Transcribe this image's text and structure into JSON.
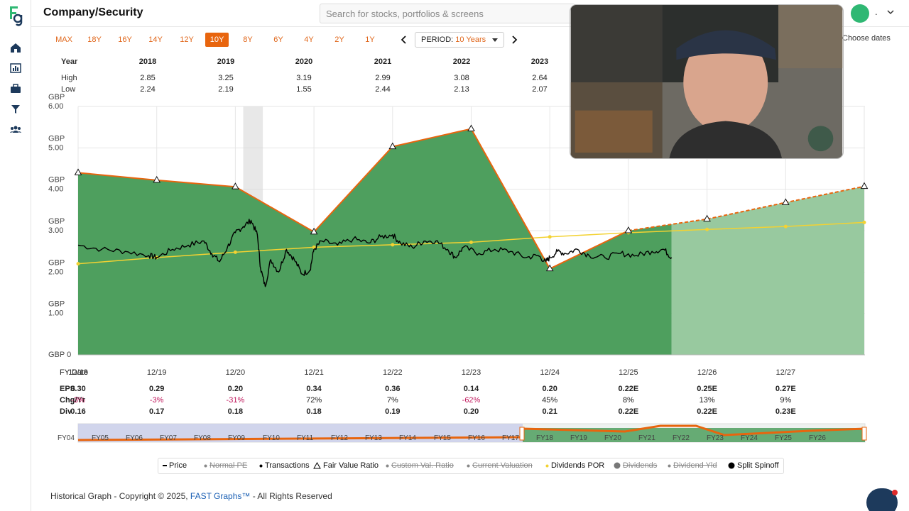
{
  "header": {
    "title": "Company/Security",
    "search_placeholder": "Search for stocks, portfolios & screens",
    "user_label": "."
  },
  "period_buttons": [
    "MAX",
    "18Y",
    "16Y",
    "14Y",
    "12Y",
    "10Y",
    "8Y",
    "6Y",
    "4Y",
    "2Y",
    "1Y"
  ],
  "active_period": "10Y",
  "period_select": {
    "label": "PERIOD:",
    "value": "10 Years"
  },
  "choose_dates_label": "Choose dates",
  "year_table": {
    "year_label": "Year",
    "high_label": "High",
    "low_label": "Low",
    "years": [
      "2018",
      "2019",
      "2020",
      "2021",
      "2022",
      "2023"
    ],
    "high": [
      "2.85",
      "3.25",
      "3.19",
      "2.99",
      "3.08",
      "2.64"
    ],
    "low": [
      "2.24",
      "2.19",
      "1.55",
      "2.44",
      "2.13",
      "2.07"
    ]
  },
  "chart_data": {
    "type": "area",
    "y_ticks": [
      {
        "currency": "GBP",
        "value": "6.00"
      },
      {
        "currency": "GBP",
        "value": "5.00"
      },
      {
        "currency": "GBP",
        "value": "4.00"
      },
      {
        "currency": "GBP",
        "value": "3.00"
      },
      {
        "currency": "GBP",
        "value": "2.00"
      },
      {
        "currency": "GBP",
        "value": "1.00"
      },
      {
        "currency": "GBP",
        "value": "0"
      }
    ],
    "ylim": [
      0,
      6
    ],
    "x_labels": [
      "12/18",
      "12/19",
      "12/20",
      "12/21",
      "12/22",
      "12/23",
      "12/24",
      "12/25",
      "12/26",
      "12/27"
    ],
    "fair_value": [
      4.4,
      4.22,
      4.06,
      2.97,
      5.03,
      5.46,
      2.08,
      3.0,
      3.28,
      3.68,
      4.07
    ],
    "fair_value_projected_from_index": 8,
    "normal_pe_line": [
      2.2,
      2.35,
      2.48,
      2.6,
      2.66,
      2.72,
      2.85,
      2.95,
      3.03,
      3.1,
      3.2
    ],
    "price_samples": [
      [
        0.0,
        2.65
      ],
      [
        0.3,
        2.55
      ],
      [
        0.6,
        2.5
      ],
      [
        0.9,
        2.4
      ],
      [
        1.0,
        2.35
      ],
      [
        1.2,
        2.55
      ],
      [
        1.4,
        2.65
      ],
      [
        1.6,
        2.75
      ],
      [
        1.7,
        2.45
      ],
      [
        1.8,
        2.25
      ],
      [
        1.9,
        2.6
      ],
      [
        2.0,
        2.95
      ],
      [
        2.1,
        3.1
      ],
      [
        2.2,
        3.25
      ],
      [
        2.28,
        2.9
      ],
      [
        2.32,
        2.1
      ],
      [
        2.38,
        1.65
      ],
      [
        2.45,
        2.3
      ],
      [
        2.55,
        2.0
      ],
      [
        2.65,
        2.55
      ],
      [
        2.75,
        2.3
      ],
      [
        2.85,
        1.95
      ],
      [
        2.95,
        2.05
      ],
      [
        3.0,
        2.55
      ],
      [
        3.1,
        2.75
      ],
      [
        3.3,
        2.65
      ],
      [
        3.5,
        2.8
      ],
      [
        3.7,
        2.7
      ],
      [
        3.85,
        2.85
      ],
      [
        4.0,
        2.9
      ],
      [
        4.1,
        2.7
      ],
      [
        4.25,
        2.6
      ],
      [
        4.4,
        2.75
      ],
      [
        4.55,
        2.75
      ],
      [
        4.7,
        2.55
      ],
      [
        4.8,
        2.35
      ],
      [
        4.9,
        2.6
      ],
      [
        5.1,
        2.45
      ],
      [
        5.3,
        2.55
      ],
      [
        5.5,
        2.5
      ],
      [
        5.7,
        2.35
      ],
      [
        5.85,
        2.4
      ],
      [
        5.95,
        2.25
      ],
      [
        6.0,
        2.35
      ],
      [
        6.1,
        2.5
      ],
      [
        6.2,
        2.45
      ],
      [
        6.35,
        2.55
      ],
      [
        6.5,
        2.4
      ],
      [
        6.7,
        2.35
      ],
      [
        6.9,
        2.45
      ],
      [
        7.1,
        2.4
      ],
      [
        7.3,
        2.5
      ],
      [
        7.45,
        2.55
      ],
      [
        7.55,
        2.35
      ]
    ],
    "price_last_index": 7.55,
    "recession_band": [
      2.1,
      2.35
    ]
  },
  "fy_date_label": "FY Date",
  "rows": {
    "eps_label": "EPS",
    "eps": [
      "0.30",
      "0.29",
      "0.20",
      "0.34",
      "0.36",
      "0.14",
      "0.20",
      "0.22E",
      "0.25E",
      "0.27E"
    ],
    "chg_label": "Chg/Yr",
    "chg": [
      "-3%",
      "-3%",
      "-31%",
      "72%",
      "7%",
      "-62%",
      "45%",
      "8%",
      "13%",
      "9%"
    ],
    "div_label": "Div",
    "div": [
      "0.16",
      "0.17",
      "0.18",
      "0.18",
      "0.19",
      "0.20",
      "0.21",
      "0.22E",
      "0.22E",
      "0.23E"
    ]
  },
  "navigator": {
    "labels": [
      "FY04",
      "FY05",
      "FY06",
      "FY07",
      "FY08",
      "FY09",
      "FY10",
      "FY11",
      "FY12",
      "FY13",
      "FY14",
      "FY15",
      "FY16",
      "FY17",
      "FY18",
      "FY19",
      "FY20",
      "FY21",
      "FY22",
      "FY23",
      "FY24",
      "FY25",
      "FY26"
    ]
  },
  "legend": [
    {
      "label": "Price",
      "enabled": true
    },
    {
      "label": "Normal PE",
      "enabled": false
    },
    {
      "label": "Transactions",
      "enabled": true
    },
    {
      "label": "Fair Value Ratio",
      "enabled": true
    },
    {
      "label": "Custom Val. Ratio",
      "enabled": false
    },
    {
      "label": "Current Valuation",
      "enabled": false
    },
    {
      "label": "Dividends POR",
      "enabled": true
    },
    {
      "label": "Dividends",
      "enabled": false
    },
    {
      "label": "Dividend Yld",
      "enabled": false
    },
    {
      "label": "Split Spinoff",
      "enabled": true
    }
  ],
  "footer": {
    "prefix": "Historical Graph - Copyright © 2025, ",
    "brand": "FAST Graphs™",
    "suffix": " - All Rights Reserved"
  },
  "colors": {
    "fair_value_fill": "#4e9f5e",
    "fair_value_projection_fill": "#98c99f",
    "fair_value_line": "#e8650e",
    "normal_pe_line": "#f3d232",
    "price_line": "#000000",
    "accent": "#e8650e"
  }
}
